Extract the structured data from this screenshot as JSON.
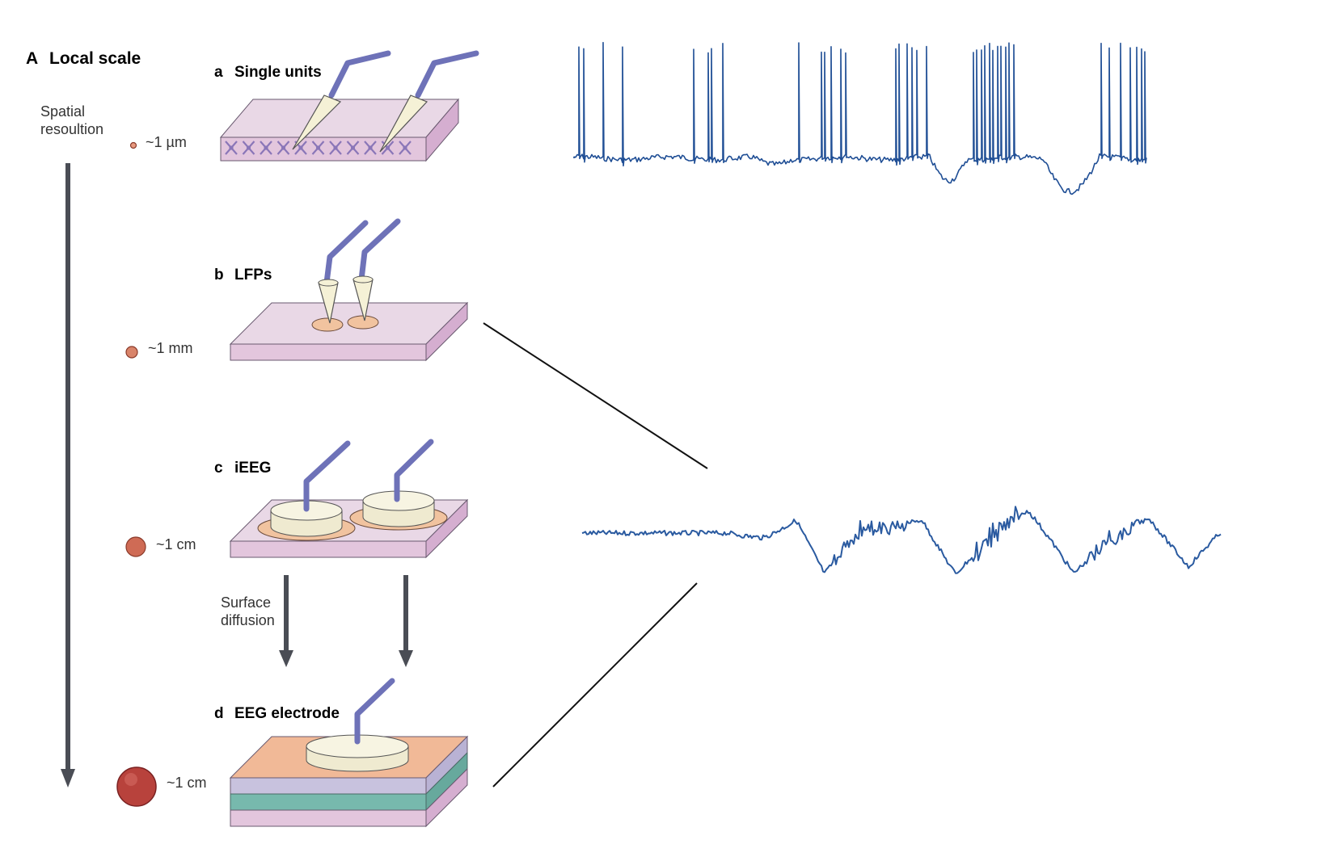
{
  "section": {
    "letter": "A",
    "title": "Local scale"
  },
  "axis": {
    "line1": "Spatial",
    "line2": "resoultion"
  },
  "panels": [
    {
      "letter": "a",
      "title": "Single units",
      "scale": "~1 µm"
    },
    {
      "letter": "b",
      "title": "LFPs",
      "scale": "~1 mm"
    },
    {
      "letter": "c",
      "title": "iEEG",
      "scale": "~1 cm"
    },
    {
      "letter": "d",
      "title": "EEG electrode",
      "scale": "~1 cm"
    }
  ],
  "diffusion": {
    "line1": "Surface",
    "line2": "diffusion"
  },
  "colors": {
    "tissue_top": "#e9d8e6",
    "tissue_side": "#d5aed0",
    "tissue_front": "#e3c6dd",
    "electrode_wire": "#7a7ec2",
    "electrode_tip": "#f5f1d6",
    "contact_pad": "#f1c39f",
    "disc": "#f5f2dd",
    "skin": "#f1b997",
    "skull": "#c8c2de",
    "csf": "#77b9ad",
    "trace": "#1f4e95",
    "neurons": "#8a76b8",
    "arrow": "#4a4d55"
  }
}
